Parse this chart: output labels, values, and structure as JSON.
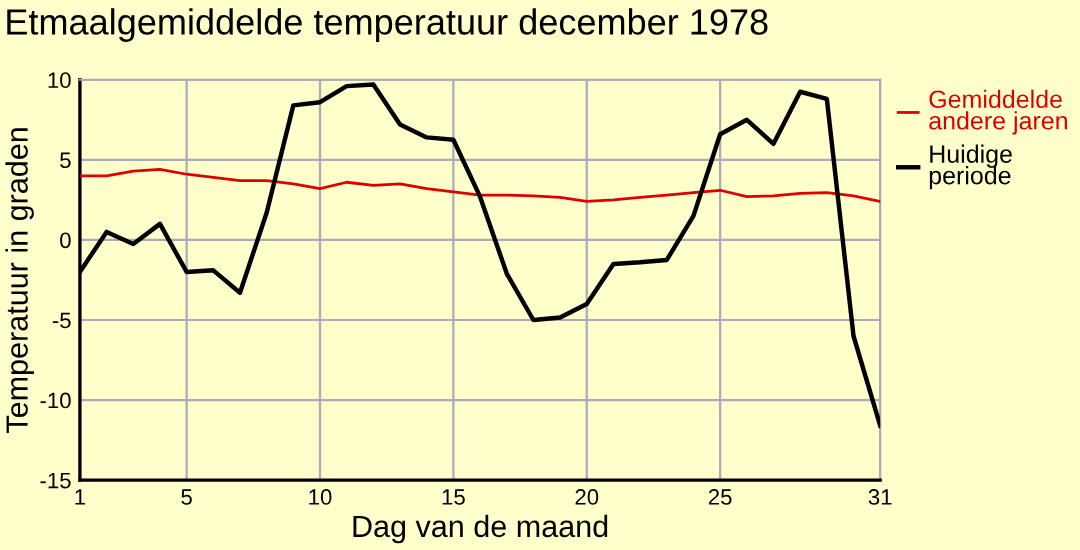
{
  "chart_data": {
    "type": "line",
    "title": "Etmaalgemiddelde temperatuur december 1978",
    "xlabel": "Dag van de maand",
    "ylabel": "Temperatuur in graden",
    "x": [
      1,
      2,
      3,
      4,
      5,
      6,
      7,
      8,
      9,
      10,
      11,
      12,
      13,
      14,
      15,
      16,
      17,
      18,
      19,
      20,
      21,
      22,
      23,
      24,
      25,
      26,
      27,
      28,
      29,
      30,
      31
    ],
    "series": [
      {
        "name": "Gemiddelde\nandere jaren",
        "color": "#dd0000",
        "values": [
          4.0,
          4.0,
          4.3,
          4.4,
          4.1,
          3.9,
          3.7,
          3.7,
          3.5,
          3.2,
          3.6,
          3.4,
          3.5,
          3.2,
          3.0,
          2.8,
          2.8,
          2.75,
          2.65,
          2.4,
          2.5,
          2.65,
          2.8,
          2.95,
          3.1,
          2.7,
          2.75,
          2.9,
          2.95,
          2.75,
          2.4
        ]
      },
      {
        "name": "Huidige\nperiode",
        "color": "#000000",
        "values": [
          -2.0,
          0.5,
          -0.25,
          1.0,
          -2.0,
          -1.9,
          -3.3,
          1.7,
          8.4,
          8.6,
          9.6,
          9.7,
          7.2,
          6.4,
          6.25,
          2.7,
          -2.1,
          -5.0,
          -4.85,
          -4.0,
          -1.5,
          -1.4,
          -1.25,
          1.5,
          6.6,
          7.5,
          6.0,
          9.25,
          8.8,
          -6.0,
          -11.6
        ]
      }
    ],
    "xlim": [
      1,
      31
    ],
    "xticks": [
      1,
      5,
      10,
      15,
      20,
      25,
      31
    ],
    "ylim": [
      -15,
      10
    ],
    "yticks": [
      -15,
      -10,
      -5,
      0,
      5,
      10
    ],
    "grid": true,
    "legend": "right",
    "marker": "none",
    "line_style": "solid"
  }
}
